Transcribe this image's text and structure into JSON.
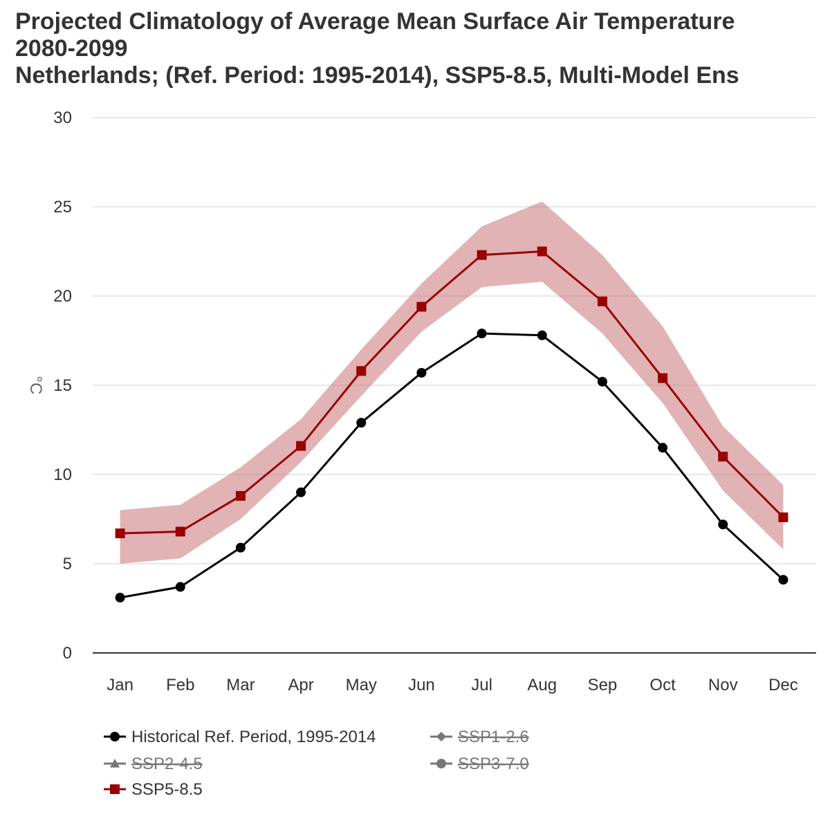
{
  "chart_data": {
    "type": "line",
    "title_lines": [
      "Projected Climatology of Average Mean Surface Air Temperature",
      "2080-2099",
      "Netherlands; (Ref. Period: 1995-2014), SSP5-8.5, Multi-Model Ens"
    ],
    "ylabel": "°C",
    "ylim": [
      0,
      30
    ],
    "yticks": [
      "0",
      "5",
      "10",
      "15",
      "20",
      "25",
      "30"
    ],
    "grid": true,
    "legend_position": "bottom",
    "categories": [
      "Jan",
      "Feb",
      "Mar",
      "Apr",
      "May",
      "Jun",
      "Jul",
      "Aug",
      "Sep",
      "Oct",
      "Nov",
      "Dec"
    ],
    "series": [
      {
        "name": "Historical Ref. Period, 1995-2014",
        "color": "#000000",
        "marker": "circle",
        "visible": true,
        "values": [
          3.1,
          3.7,
          5.9,
          9.0,
          12.9,
          15.7,
          17.9,
          17.8,
          15.2,
          11.5,
          7.2,
          4.1
        ]
      },
      {
        "name": "SSP5-8.5",
        "color": "#990000",
        "band_color": "#c97579",
        "marker": "square",
        "visible": true,
        "values": [
          6.7,
          6.8,
          8.8,
          11.6,
          15.8,
          19.4,
          22.3,
          22.5,
          19.7,
          15.4,
          11.0,
          7.6
        ],
        "range_low": [
          5.0,
          5.3,
          7.5,
          10.7,
          14.4,
          18.0,
          20.5,
          20.8,
          17.9,
          14.0,
          9.1,
          5.8
        ],
        "range_high": [
          8.0,
          8.3,
          10.4,
          13.1,
          17.0,
          20.7,
          23.9,
          25.3,
          22.3,
          18.3,
          12.7,
          9.4
        ]
      }
    ],
    "legend": [
      {
        "label": "Historical Ref. Period, 1995-2014",
        "marker": "circle",
        "color": "#000000",
        "hidden": false
      },
      {
        "label": "SSP1-2.6",
        "marker": "diamond",
        "color": "#777777",
        "hidden": true
      },
      {
        "label": "SSP2-4.5",
        "marker": "triangle",
        "color": "#777777",
        "hidden": true
      },
      {
        "label": "SSP3-7.0",
        "marker": "circle",
        "color": "#777777",
        "hidden": true
      },
      {
        "label": "SSP5-8.5",
        "marker": "square",
        "color": "#990000",
        "hidden": false
      }
    ]
  }
}
